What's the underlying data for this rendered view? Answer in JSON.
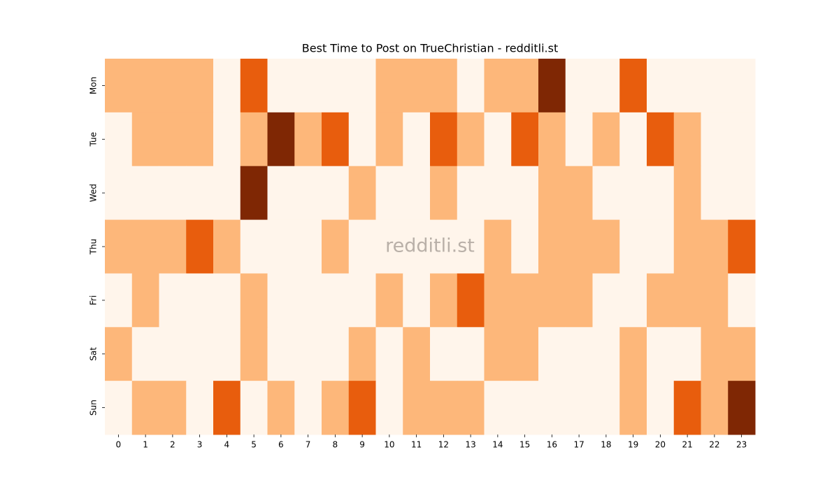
{
  "chart_data": {
    "type": "heatmap",
    "title": "Best Time to Post on TrueChristian - redditli.st",
    "watermark": "redditli.st",
    "x": [
      0,
      1,
      2,
      3,
      4,
      5,
      6,
      7,
      8,
      9,
      10,
      11,
      12,
      13,
      14,
      15,
      16,
      17,
      18,
      19,
      20,
      21,
      22,
      23
    ],
    "categories": [
      "Mon",
      "Tue",
      "Wed",
      "Thu",
      "Fri",
      "Sat",
      "Sun"
    ],
    "colors": [
      "#fff5eb",
      "#fdb77a",
      "#e85d0d",
      "#7f2704"
    ],
    "values": [
      [
        1,
        1,
        1,
        1,
        0,
        2,
        0,
        0,
        0,
        0,
        1,
        1,
        1,
        0,
        1,
        1,
        3,
        0,
        0,
        2,
        0,
        0,
        0,
        0
      ],
      [
        0,
        1,
        1,
        1,
        0,
        1,
        3,
        1,
        2,
        0,
        1,
        0,
        2,
        1,
        0,
        2,
        1,
        0,
        1,
        0,
        2,
        1,
        0,
        0
      ],
      [
        0,
        0,
        0,
        0,
        0,
        3,
        0,
        0,
        0,
        1,
        0,
        0,
        1,
        0,
        0,
        0,
        1,
        1,
        0,
        0,
        0,
        1,
        0,
        0
      ],
      [
        1,
        1,
        1,
        2,
        1,
        0,
        0,
        0,
        1,
        0,
        0,
        0,
        0,
        0,
        1,
        0,
        1,
        1,
        1,
        0,
        0,
        1,
        1,
        2
      ],
      [
        0,
        1,
        0,
        0,
        0,
        1,
        0,
        0,
        0,
        0,
        1,
        0,
        1,
        2,
        1,
        1,
        1,
        1,
        0,
        0,
        1,
        1,
        1,
        0
      ],
      [
        1,
        0,
        0,
        0,
        0,
        1,
        0,
        0,
        0,
        1,
        0,
        1,
        0,
        0,
        1,
        1,
        0,
        0,
        0,
        1,
        0,
        0,
        1,
        1
      ],
      [
        0,
        1,
        1,
        0,
        2,
        0,
        1,
        0,
        1,
        2,
        0,
        1,
        1,
        1,
        0,
        0,
        0,
        0,
        0,
        1,
        0,
        2,
        1,
        3
      ]
    ]
  }
}
